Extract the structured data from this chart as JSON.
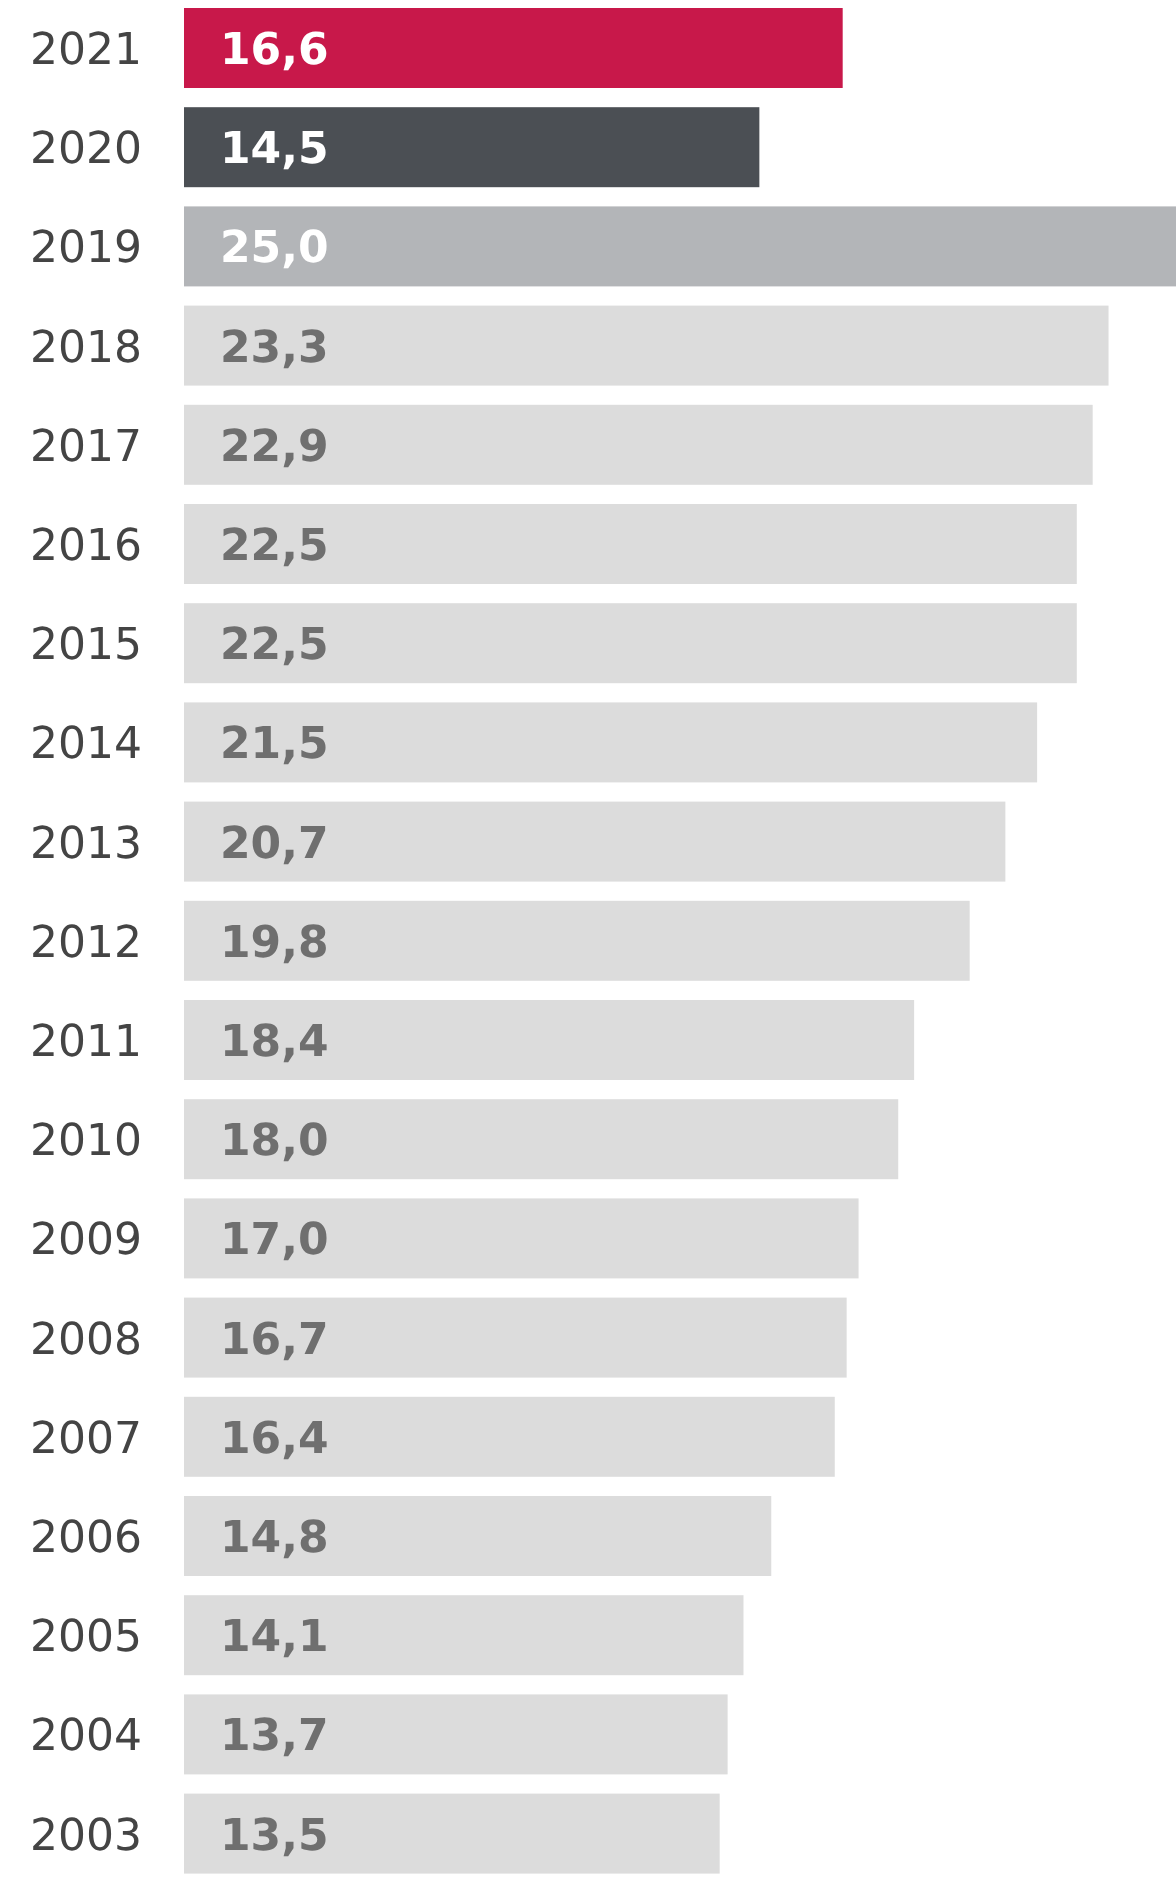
{
  "chart_data": {
    "type": "bar",
    "orientation": "horizontal",
    "categories": [
      "2021",
      "2020",
      "2019",
      "2018",
      "2017",
      "2016",
      "2015",
      "2014",
      "2013",
      "2012",
      "2011",
      "2010",
      "2009",
      "2008",
      "2007",
      "2006",
      "2005",
      "2004",
      "2003"
    ],
    "values": [
      16.6,
      14.5,
      25.0,
      23.3,
      22.9,
      22.5,
      22.5,
      21.5,
      20.7,
      19.8,
      18.4,
      18.0,
      17.0,
      16.7,
      16.4,
      14.8,
      14.1,
      13.7,
      13.5
    ],
    "colors": [
      "#c8184a",
      "#4b4f54",
      "#b3b5b8",
      "#dcdcdc",
      "#dcdcdc",
      "#dcdcdc",
      "#dcdcdc",
      "#dcdcdc",
      "#dcdcdc",
      "#dcdcdc",
      "#dcdcdc",
      "#dcdcdc",
      "#dcdcdc",
      "#dcdcdc",
      "#dcdcdc",
      "#dcdcdc",
      "#dcdcdc",
      "#dcdcdc",
      "#dcdcdc"
    ],
    "value_labels": [
      "16,6",
      "14,5",
      "25,0",
      "23,3",
      "22,9",
      "22,5",
      "22,5",
      "21,5",
      "20,7",
      "19,8",
      "18,4",
      "18,0",
      "17,0",
      "16,7",
      "16,4",
      "14,8",
      "14,1",
      "13,7",
      "13,5"
    ]
  }
}
